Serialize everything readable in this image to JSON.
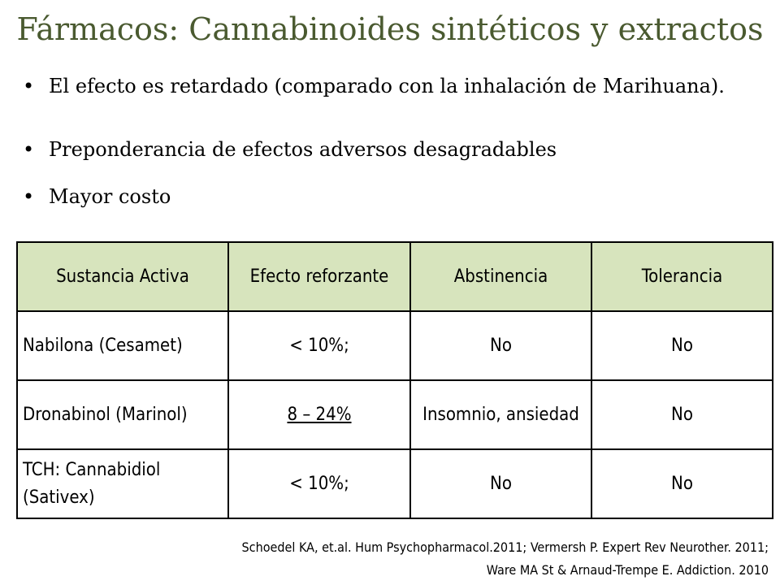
{
  "title": "Fármacos: Cannabinoides sintéticos y extractos",
  "bullets": [
    "El efecto es retardado (comparado con la inhalación de Marihuana).",
    "Preponderancia de efectos adversos desagradables",
    "Mayor costo"
  ],
  "table": {
    "headers": [
      "Sustancia Activa",
      "Efecto reforzante",
      "Abstinencia",
      "Tolerancia"
    ],
    "rows": [
      [
        "Nabilona (Cesamet)",
        "< 10%;",
        "No",
        "No"
      ],
      [
        "Dronabinol (Marinol)",
        "8 – 24%",
        "Insomnio, ansiedad",
        "No"
      ],
      [
        "TCH: Cannabidiol (Sativex)",
        "< 10%;",
        "No",
        "No"
      ]
    ]
  },
  "references": [
    "Schoedel KA, et.al. Hum Psychopharmacol.2011; Vermersh P. Expert Rev Neurother. 2011;",
    "Ware MA St & Arnaud-Trempe E. Addiction. 2010"
  ],
  "colors": {
    "title": "#4a5a30",
    "header_fill": "#d7e4bd"
  }
}
